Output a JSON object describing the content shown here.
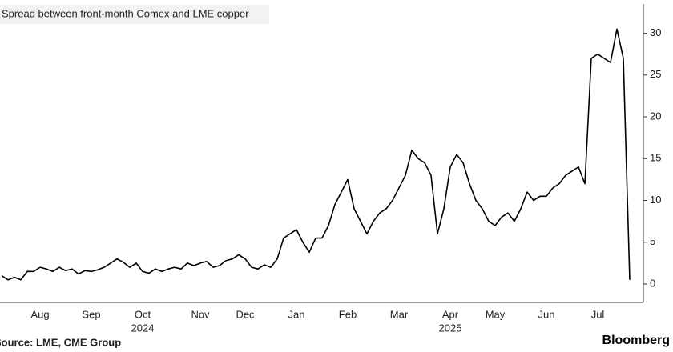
{
  "chart_data": {
    "type": "line",
    "title": "Spread between front-month Comex and LME copper",
    "source": "Source: LME, CME Group",
    "brand": "Bloomberg",
    "year_labels": [
      "2024",
      "2025"
    ],
    "categories": [
      null,
      null,
      null,
      null,
      null,
      null,
      "Aug",
      null,
      null,
      null,
      null,
      null,
      null,
      null,
      "Sep",
      null,
      null,
      null,
      null,
      null,
      null,
      null,
      "Oct",
      null,
      null,
      null,
      null,
      null,
      null,
      null,
      null,
      "Nov",
      null,
      null,
      null,
      null,
      null,
      null,
      "Dec",
      null,
      null,
      null,
      null,
      null,
      null,
      null,
      "Jan",
      null,
      null,
      null,
      null,
      null,
      null,
      null,
      "Feb",
      null,
      null,
      null,
      null,
      null,
      null,
      null,
      "Mar",
      null,
      null,
      null,
      null,
      null,
      null,
      null,
      "Apr",
      null,
      null,
      null,
      null,
      null,
      null,
      "May",
      null,
      null,
      null,
      null,
      null,
      null,
      null,
      "Jun",
      null,
      null,
      null,
      null,
      null,
      null,
      null,
      "Jul",
      null,
      null,
      null,
      null,
      null
    ],
    "values": [
      1.0,
      0.5,
      0.8,
      0.5,
      1.5,
      1.5,
      2.0,
      1.8,
      1.5,
      2.0,
      1.6,
      1.8,
      1.2,
      1.6,
      1.5,
      1.7,
      2.0,
      2.5,
      3.0,
      2.6,
      2.0,
      2.5,
      1.5,
      1.3,
      1.8,
      1.5,
      1.8,
      2.0,
      1.8,
      2.5,
      2.2,
      2.5,
      2.7,
      2.0,
      2.2,
      2.8,
      3.0,
      3.5,
      3.0,
      2.0,
      1.8,
      2.3,
      2.0,
      3.0,
      5.5,
      6.0,
      6.5,
      5.0,
      3.8,
      5.5,
      5.5,
      7.0,
      9.5,
      11.0,
      12.5,
      9.0,
      7.5,
      6.0,
      7.5,
      8.5,
      9.0,
      10.0,
      11.5,
      13.0,
      16.0,
      15.0,
      14.5,
      13.0,
      6.0,
      9.0,
      14.0,
      15.5,
      14.5,
      12.0,
      10.0,
      9.0,
      7.5,
      7.0,
      8.0,
      8.5,
      7.5,
      9.0,
      11.0,
      10.0,
      10.5,
      10.5,
      11.5,
      12.0,
      13.0,
      13.5,
      14.0,
      12.0,
      27.0,
      27.5,
      27.0,
      26.5,
      30.5,
      27.0,
      0.5
    ],
    "color": "#000000",
    "ylim": [
      -2.2,
      33.5
    ],
    "yticks": [
      0,
      5,
      10,
      15,
      20,
      25,
      30
    ],
    "grid": false
  }
}
